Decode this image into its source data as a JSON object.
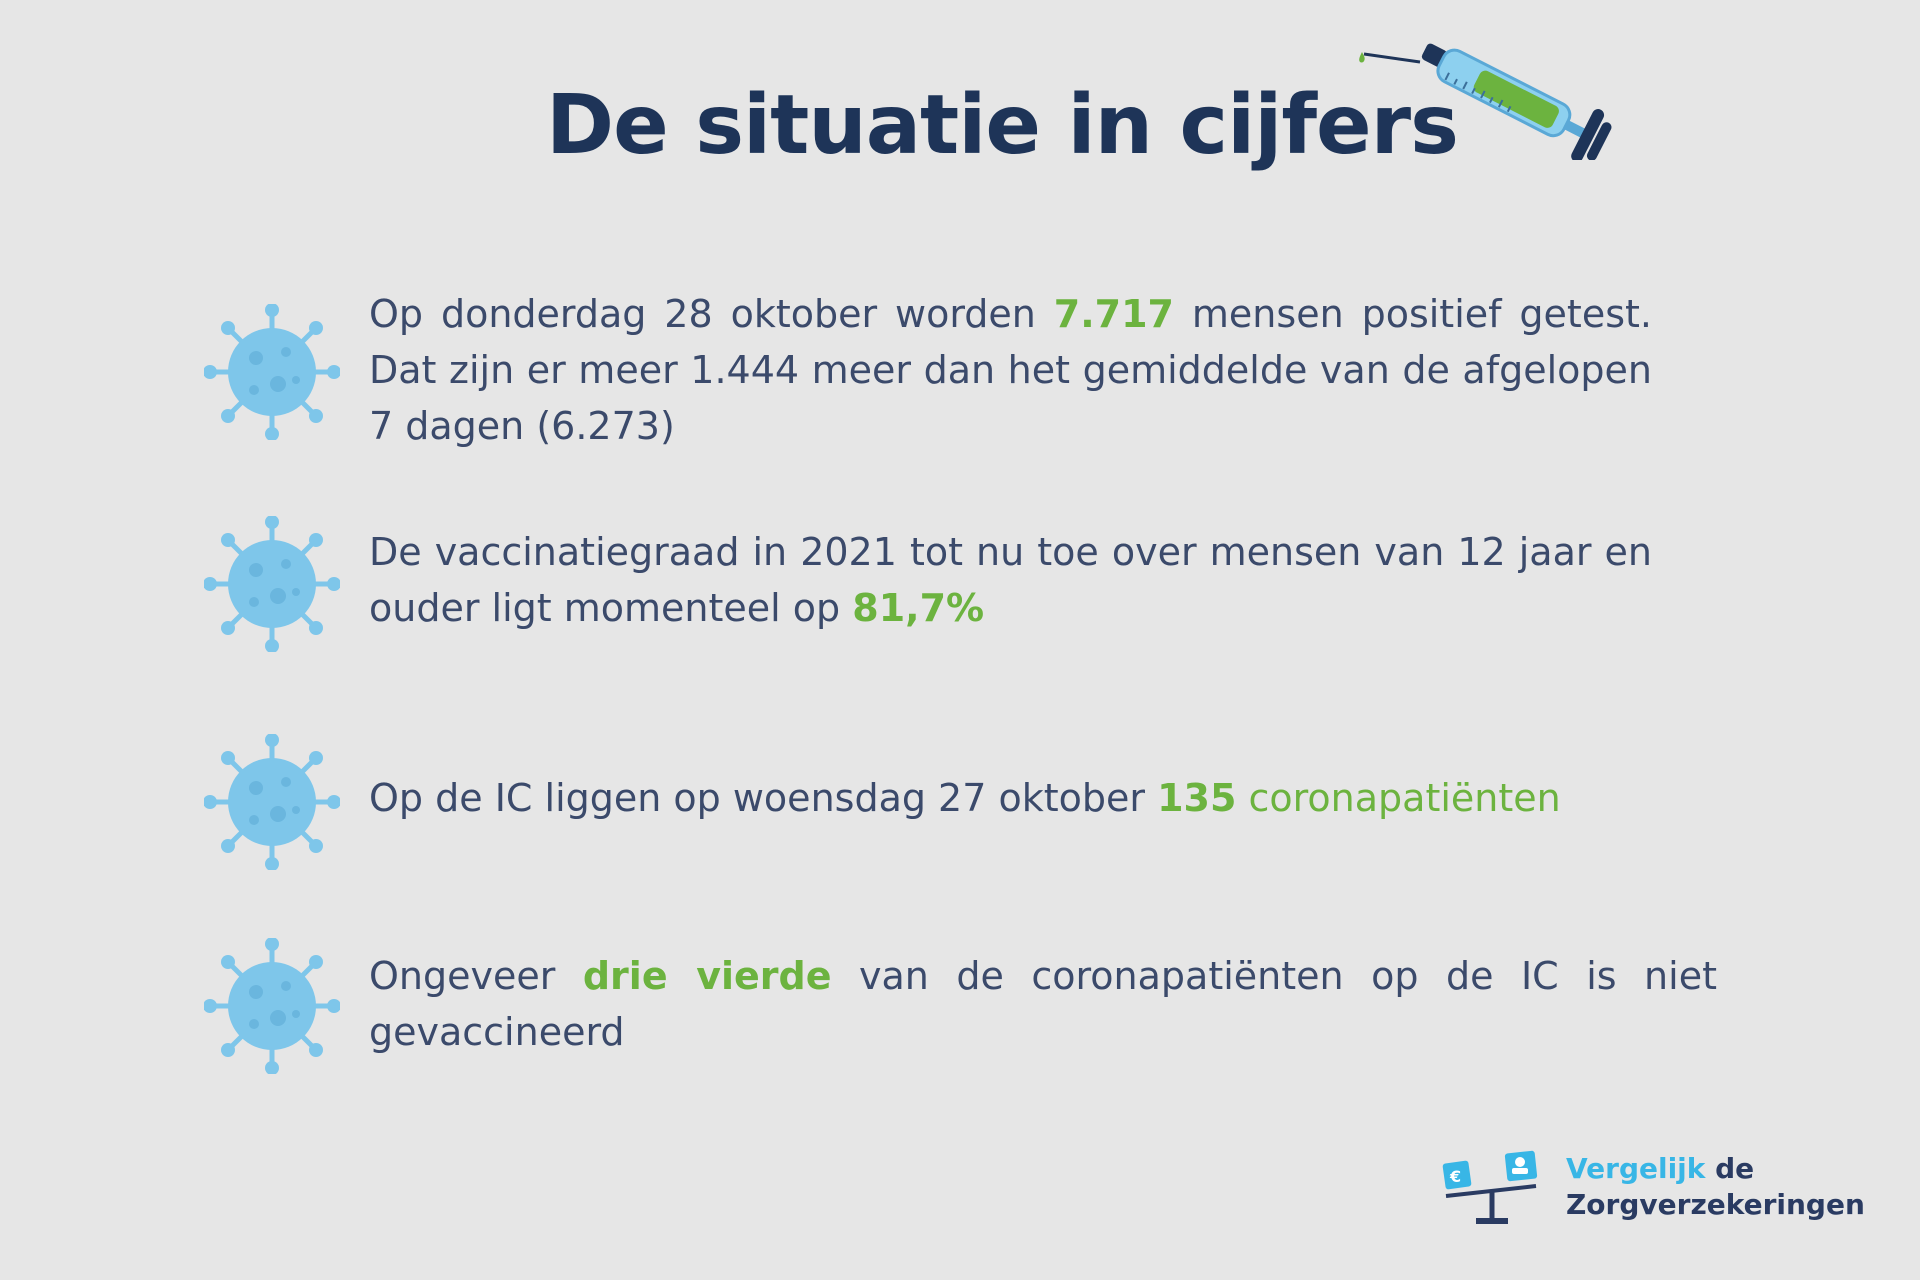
{
  "title": "De situatie in cijfers",
  "icons": {
    "syringe": "syringe-icon",
    "virus": "virus-icon",
    "logo": "scale-logo-icon"
  },
  "colors": {
    "background": "#e6e6e6",
    "title": "#1e3458",
    "text": "#3b4a6b",
    "highlight": "#6cb33f",
    "virus": "#7ec6ea"
  },
  "facts": [
    {
      "pre": "Op donderdag 28 oktober worden ",
      "highlight": "7.717",
      "post": " mensen positief getest. Dat zijn er meer 1.444 meer dan het gemiddelde van de afgelopen 7 dagen (6.273)"
    },
    {
      "pre": "De vaccinatiegraad in 2021 tot nu toe over mensen van 12 jaar en ouder ligt momenteel op ",
      "highlight": "81,7%",
      "post": ""
    },
    {
      "pre": "Op de IC liggen op woensdag 27 oktober ",
      "highlight": "135",
      "post_highlight": " coronapatiënten"
    },
    {
      "pre": "Ongeveer ",
      "highlight": "drie vierde",
      "post": " van de coronapatiënten op de IC is niet gevaccineerd"
    }
  ],
  "logo": {
    "line1_a": "Vergelijk",
    "line1_b": " de",
    "line2": "Zorgverzekeringen"
  }
}
